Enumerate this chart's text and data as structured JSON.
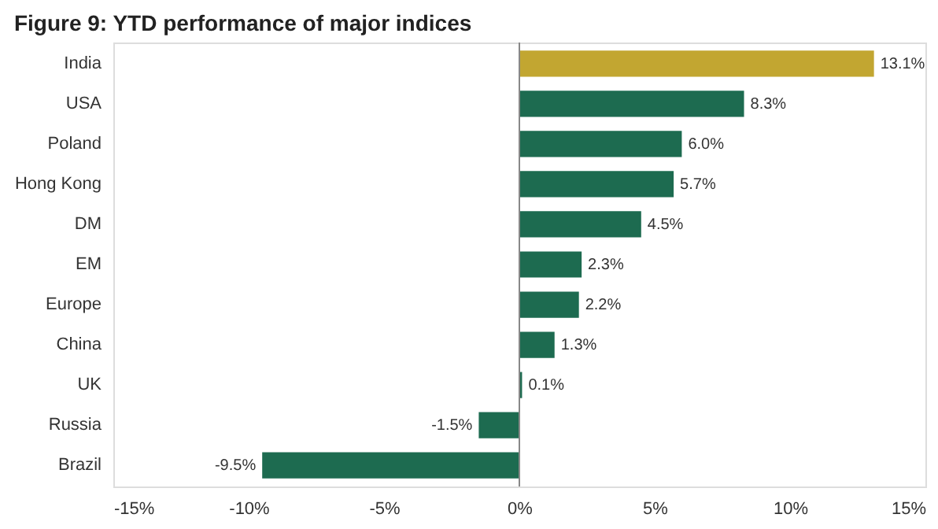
{
  "chart_data": {
    "type": "bar",
    "orientation": "horizontal",
    "title": "Figure 9: YTD performance of major indices",
    "categories": [
      "India",
      "USA",
      "Poland",
      "Hong Kong",
      "DM",
      "EM",
      "Europe",
      "China",
      "UK",
      "Russia",
      "Brazil"
    ],
    "values": [
      13.1,
      8.3,
      6.0,
      5.7,
      4.5,
      2.3,
      2.2,
      1.3,
      0.1,
      -1.5,
      -9.5
    ],
    "colors": [
      "#c2a631",
      "#1d6b50",
      "#1d6b50",
      "#1d6b50",
      "#1d6b50",
      "#1d6b50",
      "#1d6b50",
      "#1d6b50",
      "#1d6b50",
      "#1d6b50",
      "#1d6b50"
    ],
    "value_labels": [
      "13.1%",
      "8.3%",
      "6.0%",
      "5.7%",
      "4.5%",
      "2.3%",
      "2.2%",
      "1.3%",
      "0.1%",
      "-1.5%",
      "-9.5%"
    ],
    "xlim": [
      -15,
      15
    ],
    "xticks": [
      {
        "value": -15,
        "label": "-15%"
      },
      {
        "value": -10,
        "label": "-10%"
      },
      {
        "value": -5,
        "label": "-5%"
      },
      {
        "value": 0,
        "label": "0%"
      },
      {
        "value": 5,
        "label": "5%"
      },
      {
        "value": 10,
        "label": "10%"
      },
      {
        "value": 15,
        "label": "15%"
      }
    ],
    "ref_lines": [
      {
        "axis": "x",
        "value": 0,
        "color": "#888888"
      }
    ],
    "grid": false
  }
}
